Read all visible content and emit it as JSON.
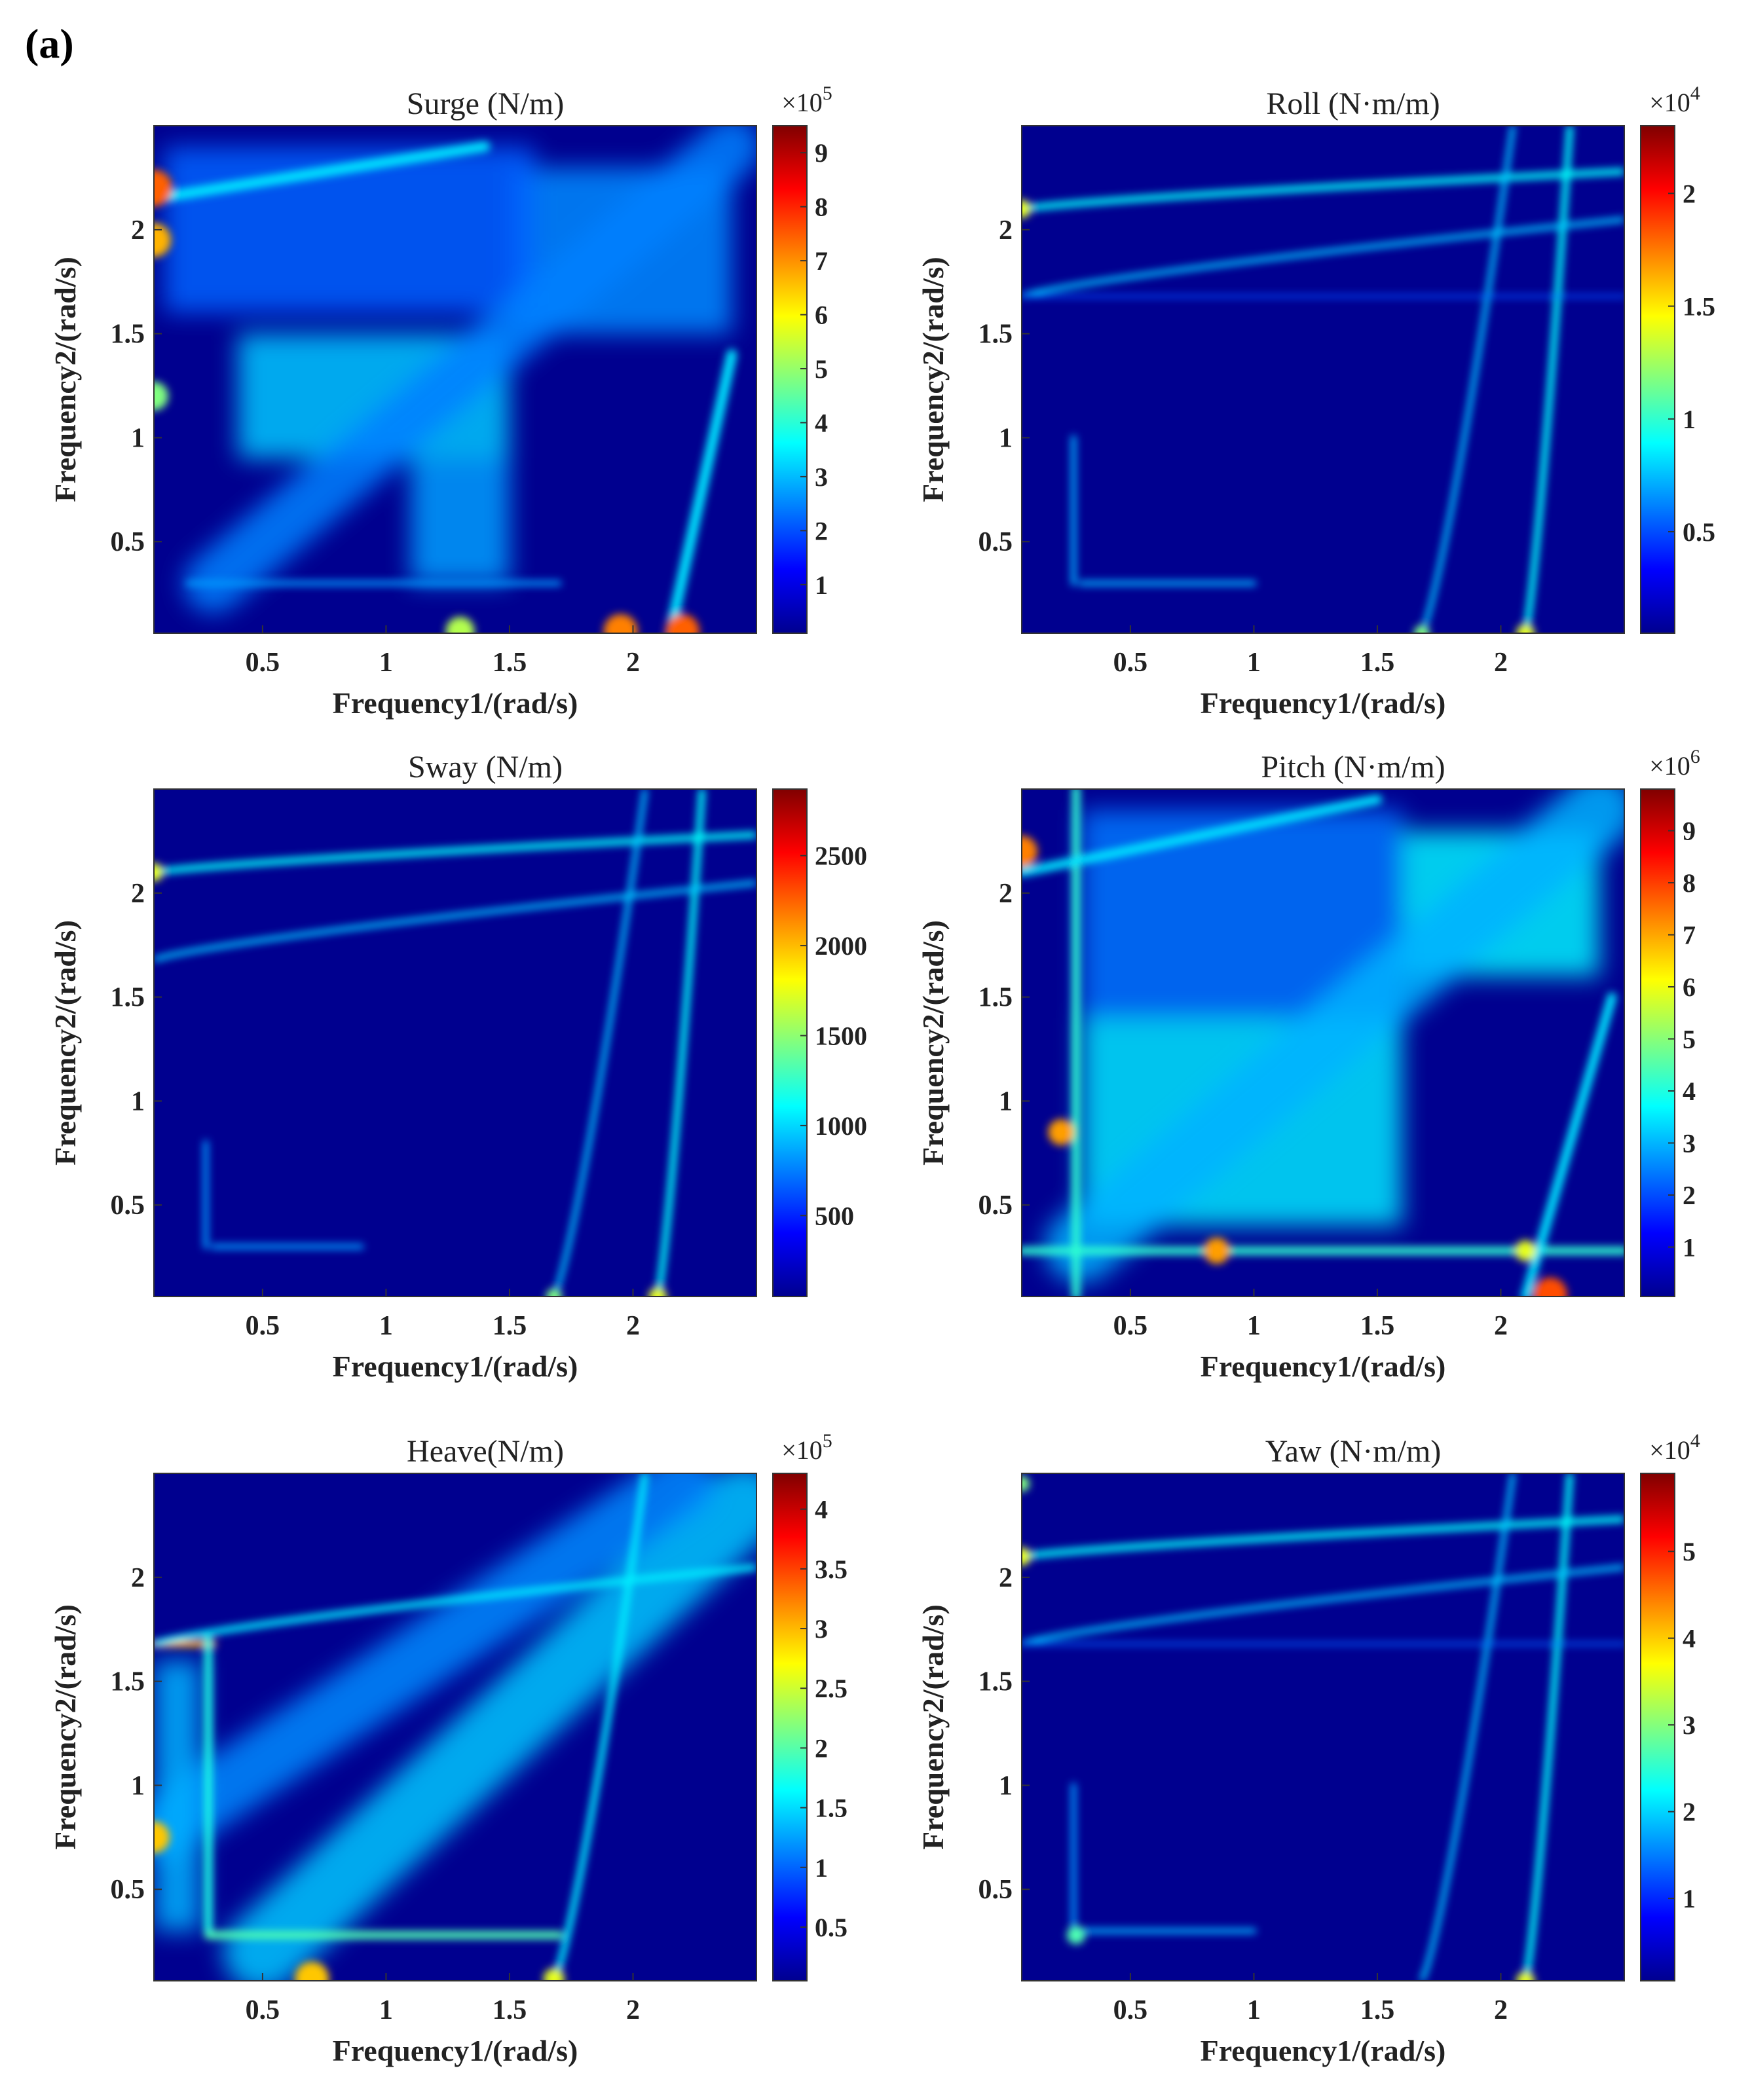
{
  "panel_label": "(a)",
  "colors": {
    "colormap": [
      "#00008f",
      "#0000ff",
      "#0080ff",
      "#00ffff",
      "#80ff80",
      "#ffff00",
      "#ff8000",
      "#ff0000",
      "#800000"
    ],
    "background": "#00008f"
  },
  "chart_data": [
    {
      "type": "heatmap",
      "title": "Surge (N/m)",
      "xlabel": "Frequency1/(rad/s)",
      "ylabel": "Frequency2/(rad/s)",
      "x_ticks": [
        "0.5",
        "1",
        "1.5",
        "2"
      ],
      "y_ticks": [
        "0.5",
        "1",
        "1.5",
        "2"
      ],
      "xlim": [
        0.06,
        2.5
      ],
      "ylim": [
        0.06,
        2.5
      ],
      "colorbar": {
        "ticks": [
          "1",
          "2",
          "3",
          "4",
          "5",
          "6",
          "7",
          "8",
          "9"
        ],
        "tick_values": [
          1,
          2,
          3,
          4,
          5,
          6,
          7,
          8,
          9
        ],
        "range": [
          0.1,
          9.5
        ],
        "exponent_base": "×10",
        "exponent_power": "5"
      }
    },
    {
      "type": "heatmap",
      "title": "Roll  (N·m/m)",
      "xlabel": "Frequency1/(rad/s)",
      "ylabel": "Frequency2/(rad/s)",
      "x_ticks": [
        "0.5",
        "1",
        "1.5",
        "2"
      ],
      "y_ticks": [
        "0.5",
        "1",
        "1.5",
        "2"
      ],
      "xlim": [
        0.06,
        2.5
      ],
      "ylim": [
        0.06,
        2.5
      ],
      "colorbar": {
        "ticks": [
          "0.5",
          "1",
          "1.5",
          "2"
        ],
        "tick_values": [
          0.5,
          1,
          1.5,
          2
        ],
        "range": [
          0.05,
          2.3
        ],
        "exponent_base": "×10",
        "exponent_power": "4"
      }
    },
    {
      "type": "heatmap",
      "title": "Sway (N/m)",
      "xlabel": "Frequency1/(rad/s)",
      "ylabel": "Frequency2/(rad/s)",
      "x_ticks": [
        "0.5",
        "1",
        "1.5",
        "2"
      ],
      "y_ticks": [
        "0.5",
        "1",
        "1.5",
        "2"
      ],
      "xlim": [
        0.06,
        2.5
      ],
      "ylim": [
        0.06,
        2.5
      ],
      "colorbar": {
        "ticks": [
          "500",
          "1000",
          "1500",
          "2000",
          "2500"
        ],
        "tick_values": [
          500,
          1000,
          1500,
          2000,
          2500
        ],
        "range": [
          50,
          2870
        ],
        "exponent_base": "",
        "exponent_power": ""
      }
    },
    {
      "type": "heatmap",
      "title": "Pitch (N·m/m)",
      "xlabel": "Frequency1/(rad/s)",
      "ylabel": "Frequency2/(rad/s)",
      "x_ticks": [
        "0.5",
        "1",
        "1.5",
        "2"
      ],
      "y_ticks": [
        "0.5",
        "1",
        "1.5",
        "2"
      ],
      "xlim": [
        0.06,
        2.5
      ],
      "ylim": [
        0.06,
        2.5
      ],
      "colorbar": {
        "ticks": [
          "1",
          "2",
          "3",
          "4",
          "5",
          "6",
          "7",
          "8",
          "9"
        ],
        "tick_values": [
          1,
          2,
          3,
          4,
          5,
          6,
          7,
          8,
          9
        ],
        "range": [
          0.05,
          9.8
        ],
        "exponent_base": "×10",
        "exponent_power": "6"
      }
    },
    {
      "type": "heatmap",
      "title": "Heave(N/m)",
      "xlabel": "Frequency1/(rad/s)",
      "ylabel": "Frequency2/(rad/s)",
      "x_ticks": [
        "0.5",
        "1",
        "1.5",
        "2"
      ],
      "y_ticks": [
        "0.5",
        "1",
        "1.5",
        "2"
      ],
      "xlim": [
        0.06,
        2.5
      ],
      "ylim": [
        0.06,
        2.5
      ],
      "colorbar": {
        "ticks": [
          "0.5",
          "1",
          "1.5",
          "2",
          "2.5",
          "3",
          "3.5",
          "4"
        ],
        "tick_values": [
          0.5,
          1,
          1.5,
          2,
          2.5,
          3,
          3.5,
          4
        ],
        "range": [
          0.05,
          4.3
        ],
        "exponent_base": "×10",
        "exponent_power": "5"
      }
    },
    {
      "type": "heatmap",
      "title": "Yaw (N·m/m)",
      "xlabel": "Frequency1/(rad/s)",
      "ylabel": "Frequency2/(rad/s)",
      "x_ticks": [
        "0.5",
        "1",
        "1.5",
        "2"
      ],
      "y_ticks": [
        "0.5",
        "1",
        "1.5",
        "2"
      ],
      "xlim": [
        0.06,
        2.5
      ],
      "ylim": [
        0.06,
        2.5
      ],
      "colorbar": {
        "ticks": [
          "1",
          "2",
          "3",
          "4",
          "5"
        ],
        "tick_values": [
          1,
          2,
          3,
          4,
          5
        ],
        "range": [
          0.05,
          5.9
        ],
        "exponent_base": "×10",
        "exponent_power": "4"
      }
    }
  ]
}
